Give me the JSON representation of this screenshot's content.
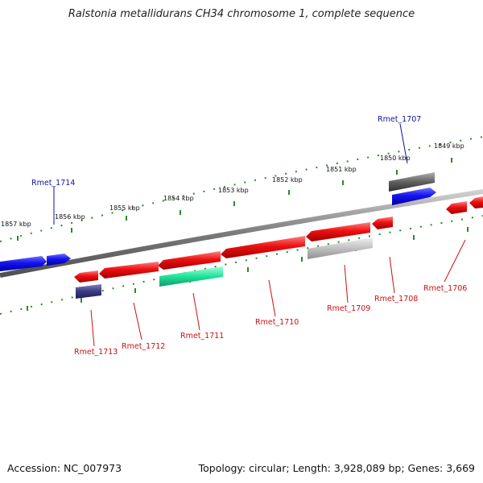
{
  "title": "Ralstonia metallidurans CH34 chromosome 1, complete sequence",
  "footer": {
    "accession": "Accession: NC_007973",
    "summary": "Topology: circular; Length: 3,928,089 bp; Genes: 3,669"
  },
  "ticks": [
    "1849 kbp",
    "1850 kbp",
    "1851 kbp",
    "1852 kbp",
    "1853 kbp",
    "1854 kbp",
    "1855 kbp",
    "1856 kbp",
    "1857 kbp"
  ],
  "genes_forward": [
    "Rmet_1707",
    "Rmet_1714"
  ],
  "genes_reverse": [
    "Rmet_1706",
    "Rmet_1708",
    "Rmet_1709",
    "Rmet_1710",
    "Rmet_1711",
    "Rmet_1712",
    "Rmet_1713"
  ],
  "colors": {
    "forward_label": "#1010a0",
    "reverse_label": "#cc1010",
    "forward_gene": "#1a1aee",
    "reverse_gene": "#ee1010",
    "tick": "#2a8a2a",
    "backbone": "#808080",
    "green_feature": "#2ee8a0",
    "dark_feature": "#3a3a80",
    "gray_feature": "#c0c0c0",
    "darkgray_feature": "#606060"
  }
}
